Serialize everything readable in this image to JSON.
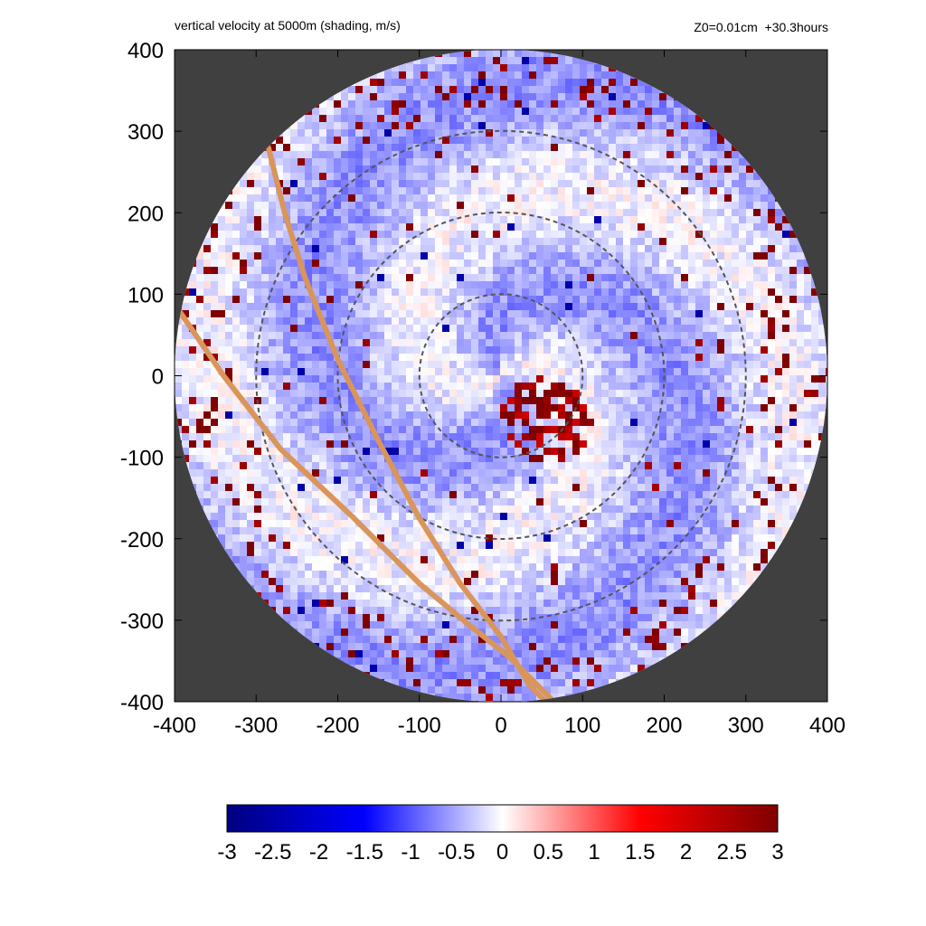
{
  "chart_data": {
    "type": "heatmap",
    "title_left": "vertical velocity at 5000m (shading, m/s)",
    "title_right": "Z0=0.01cm  +30.3hours",
    "xlabel": "",
    "ylabel": "",
    "xlim": [
      -400,
      400
    ],
    "ylim": [
      -400,
      400
    ],
    "x_ticks": [
      "-400",
      "-300",
      "-200",
      "-100",
      "0",
      "100",
      "200",
      "300",
      "400"
    ],
    "y_ticks": [
      "400",
      "300",
      "200",
      "100",
      "0",
      "-100",
      "-200",
      "-300",
      "-400"
    ],
    "domain_radius": 400,
    "range_rings": [
      100,
      200,
      300
    ],
    "background_color": "#404040",
    "colorbar": {
      "min": -3,
      "max": 3,
      "ticks": [
        "-3",
        "-2.5",
        "-2",
        "-1.5",
        "-1",
        "-0.5",
        "0",
        "0.5",
        "1",
        "1.5",
        "2",
        "2.5",
        "3"
      ],
      "colors": [
        "#00007f",
        "#0000ff",
        "#ffffff",
        "#ff0000",
        "#7f0000"
      ]
    },
    "tracks": [
      {
        "color": "#d9955a",
        "points": [
          [
            -285,
            280
          ],
          [
            -265,
            200
          ],
          [
            -240,
            120
          ],
          [
            -200,
            20
          ],
          [
            -150,
            -80
          ],
          [
            -100,
            -175
          ],
          [
            -50,
            -255
          ],
          [
            0,
            -320
          ],
          [
            35,
            -380
          ],
          [
            55,
            -400
          ]
        ]
      },
      {
        "color": "#d9955a",
        "points": [
          [
            -400,
            88
          ],
          [
            -340,
            0
          ],
          [
            -270,
            -90
          ],
          [
            -180,
            -175
          ],
          [
            -100,
            -255
          ],
          [
            -40,
            -305
          ],
          [
            10,
            -345
          ],
          [
            45,
            -380
          ],
          [
            65,
            -400
          ]
        ]
      }
    ]
  }
}
